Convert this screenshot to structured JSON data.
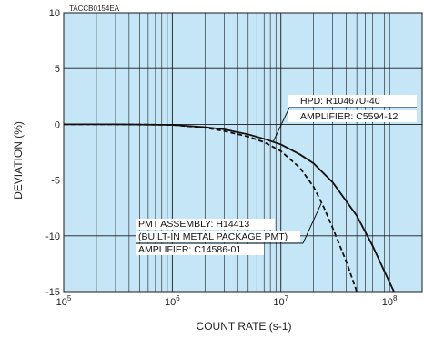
{
  "chart_data": {
    "type": "line",
    "code": "TACCB0154EA",
    "xlabel": "COUNT RATE (s-1)",
    "ylabel": "DEVIATION (%)",
    "x_scale": "log",
    "xlim": [
      100000,
      200000000
    ],
    "ylim": [
      -15,
      10
    ],
    "grid": true,
    "plot_background": "#c5e6f7",
    "x_ticks": [
      {
        "value": 100000,
        "base": "10",
        "exp": "5"
      },
      {
        "value": 1000000,
        "base": "10",
        "exp": "6"
      },
      {
        "value": 10000000,
        "base": "10",
        "exp": "7"
      },
      {
        "value": 100000000,
        "base": "10",
        "exp": "8"
      }
    ],
    "y_ticks": [
      {
        "value": 10,
        "label": "10"
      },
      {
        "value": 5,
        "label": "5"
      },
      {
        "value": 0,
        "label": "0"
      },
      {
        "value": -5,
        "label": "-5"
      },
      {
        "value": -10,
        "label": "-10"
      },
      {
        "value": -15,
        "label": "-15"
      }
    ],
    "series": [
      {
        "id": "hpd",
        "style": "solid",
        "color": "#111111",
        "labels": [
          "HPD: R10467U-40",
          "AMPLIFIER: C5594-12"
        ],
        "x": [
          100000,
          300000,
          1000000,
          2000000,
          3000000,
          5000000,
          7000000,
          10000000,
          15000000,
          20000000,
          30000000,
          50000000,
          70000000,
          90000000,
          110000000
        ],
        "y": [
          0,
          0,
          -0.05,
          -0.25,
          -0.45,
          -0.9,
          -1.3,
          -1.8,
          -2.7,
          -3.5,
          -5.2,
          -8.2,
          -10.9,
          -13.2,
          -15
        ]
      },
      {
        "id": "pmt",
        "style": "dashed",
        "color": "#111111",
        "labels": [
          "PMT ASSEMBLY: H14413",
          "(BUILT-IN METAL PACKAGE PMT)",
          "AMPLIFIER: C14586-01"
        ],
        "x": [
          100000,
          300000,
          1000000,
          2000000,
          3000000,
          5000000,
          7000000,
          10000000,
          15000000,
          20000000,
          25000000,
          30000000,
          40000000,
          50000000
        ],
        "y": [
          0,
          0,
          -0.05,
          -0.3,
          -0.6,
          -1.1,
          -1.6,
          -2.4,
          -3.9,
          -5.6,
          -7.5,
          -9.3,
          -12.3,
          -15
        ]
      }
    ]
  }
}
